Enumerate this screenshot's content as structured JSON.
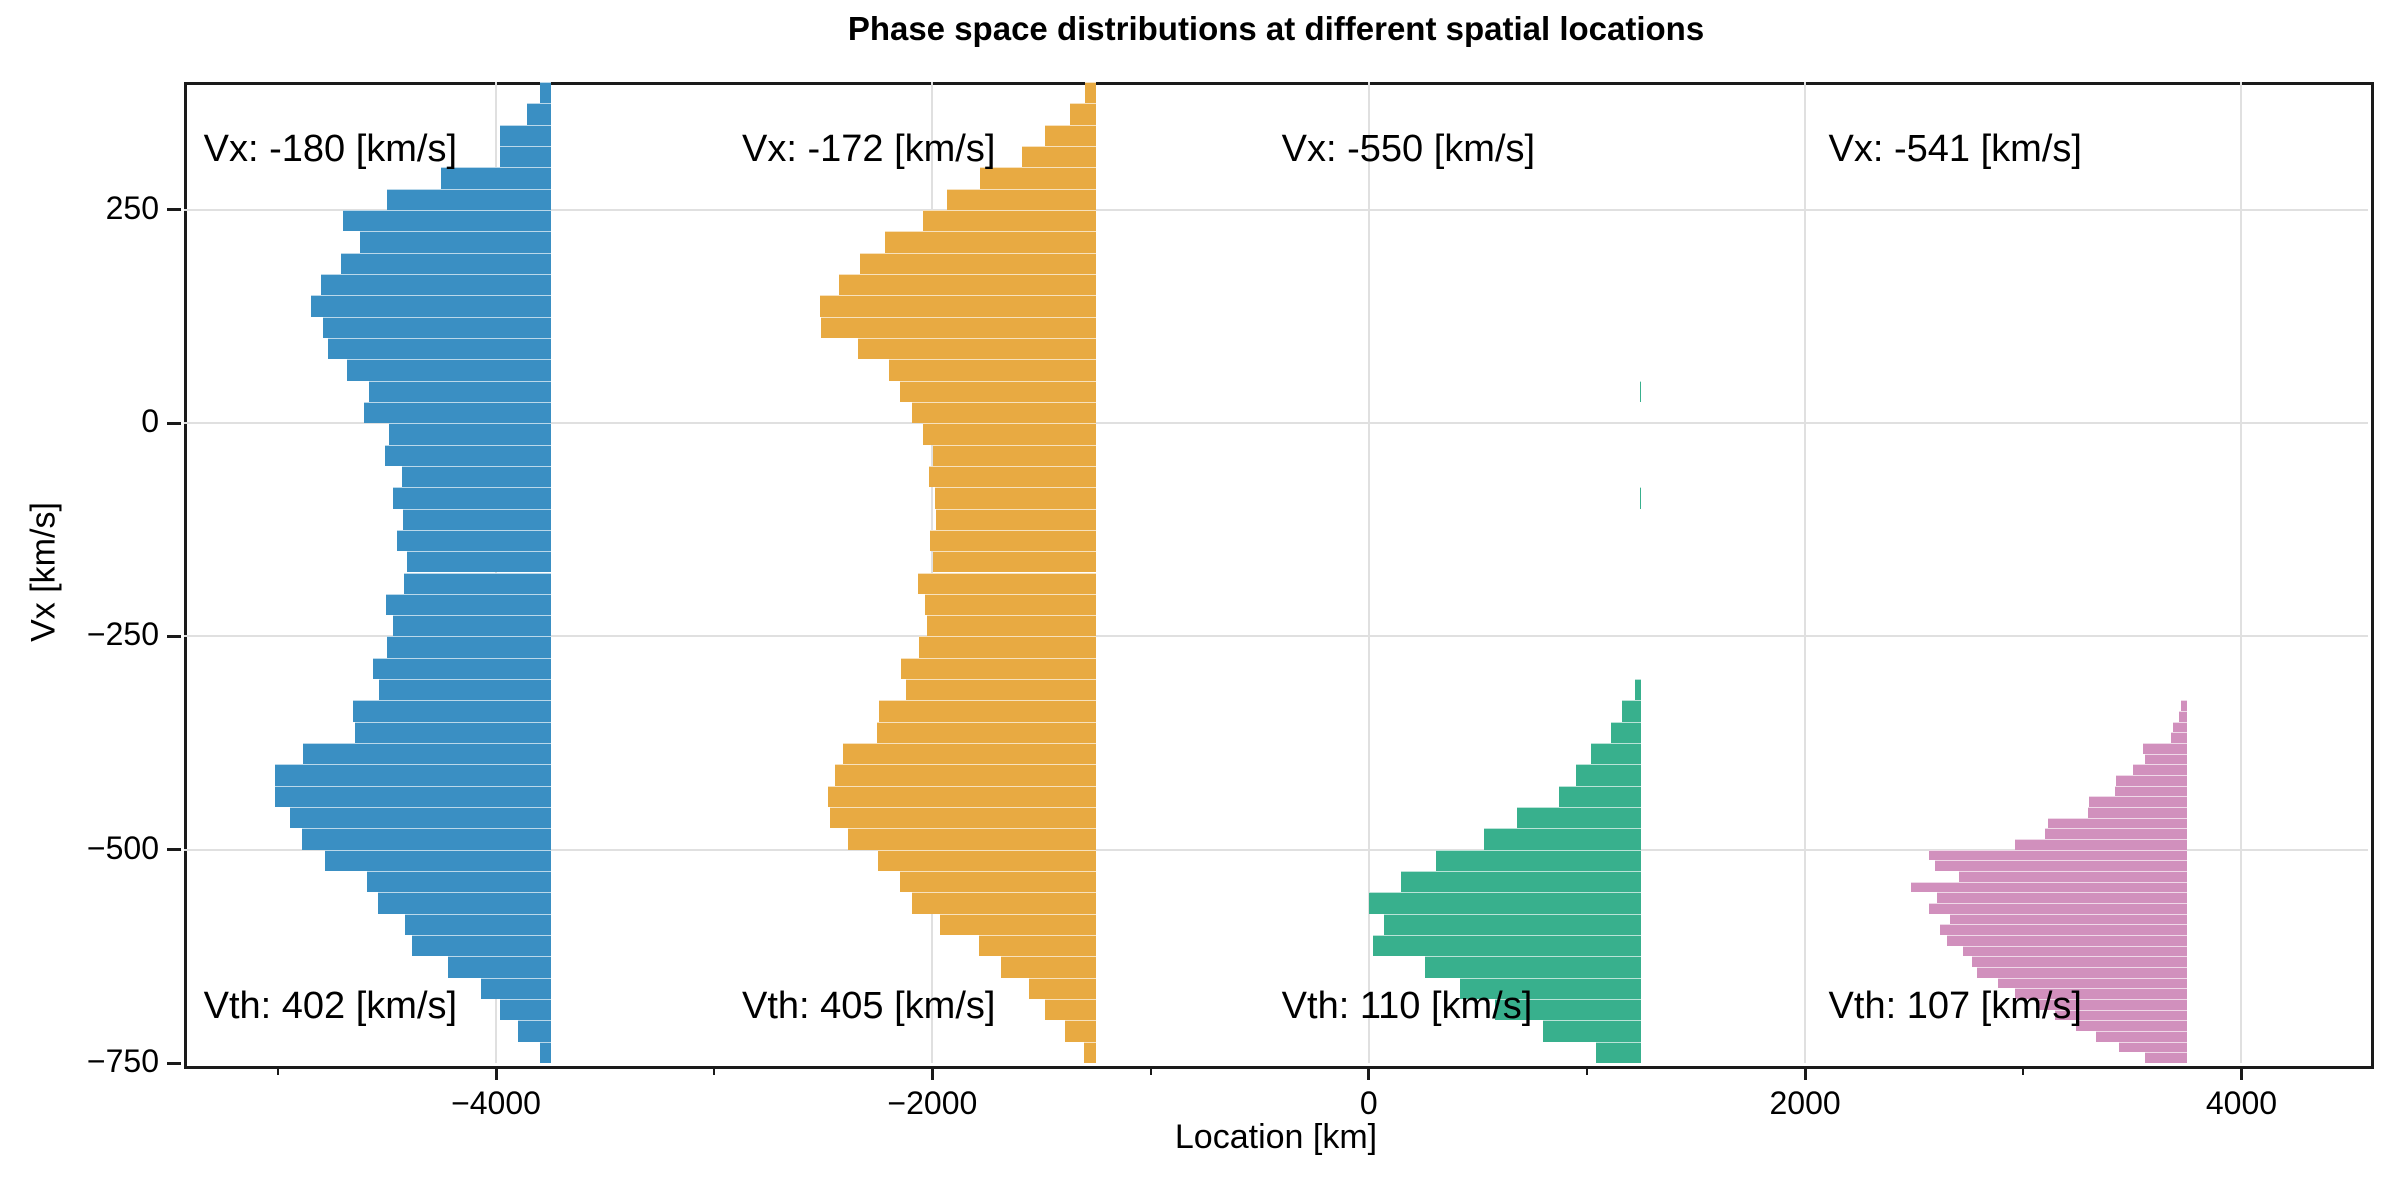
{
  "title": "Phase space distributions at different spatial locations",
  "axes": {
    "xlabel": "Location [km]",
    "ylabel": "Vx [km/s]",
    "xlim": [
      -5430,
      4580
    ],
    "ylim": [
      -750,
      400
    ],
    "x_major_ticks": [
      {
        "v": -4000,
        "label": "−4000"
      },
      {
        "v": -2000,
        "label": "−2000"
      },
      {
        "v": 0,
        "label": "0"
      },
      {
        "v": 2000,
        "label": "2000"
      },
      {
        "v": 4000,
        "label": "4000"
      }
    ],
    "x_minor_ticks": [
      -5000,
      -3000,
      -1000,
      1000,
      3000
    ],
    "y_major_ticks": [
      {
        "v": 250,
        "label": "250"
      },
      {
        "v": 0,
        "label": "0"
      },
      {
        "v": -250,
        "label": "−250"
      },
      {
        "v": -500,
        "label": "−500"
      },
      {
        "v": -750,
        "label": "−750"
      }
    ],
    "grid_color": "#e0e0e0",
    "spine_color": "#1a1a1a"
  },
  "chart_data": {
    "type": "bar",
    "subtype": "horizontal-histograms-at-locations",
    "grid": true,
    "series": [
      {
        "name": "distribution-1",
        "location_km": -3750,
        "color": "#3a8fc3",
        "vx_value": -180,
        "vth_value": 402,
        "vx_label": "Vx: -180 [km/s]",
        "vth_label": "Vth: 402 [km/s]",
        "ann_x_frac": 0.009,
        "bin_km_s": 25,
        "v_start": 400,
        "widths_km": [
          50,
          110,
          230,
          230,
          500,
          750,
          950,
          875,
          960,
          1050,
          1100,
          1045,
          1020,
          935,
          830,
          855,
          740,
          760,
          680,
          720,
          675,
          705,
          660,
          670,
          755,
          720,
          750,
          815,
          785,
          905,
          895,
          1135,
          1265,
          1265,
          1195,
          1140,
          1035,
          840,
          790,
          665,
          635,
          470,
          320,
          230,
          150,
          50
        ]
      },
      {
        "name": "distribution-2",
        "location_km": -1250,
        "color": "#e8aa42",
        "vx_value": -172,
        "vth_value": 405,
        "vx_label": "Vx: -172 [km/s]",
        "vth_label": "Vth: 405 [km/s]",
        "ann_x_frac": 0.2555,
        "bin_km_s": 25,
        "v_start": 400,
        "widths_km": [
          50,
          120,
          235,
          340,
          530,
          685,
          795,
          965,
          1080,
          1180,
          1265,
          1260,
          1090,
          950,
          900,
          845,
          795,
          745,
          765,
          740,
          735,
          760,
          745,
          815,
          785,
          775,
          810,
          895,
          870,
          995,
          1005,
          1160,
          1195,
          1230,
          1220,
          1135,
          1000,
          900,
          845,
          715,
          535,
          435,
          305,
          235,
          140,
          55
        ]
      },
      {
        "name": "distribution-3",
        "location_km": 1250,
        "color": "#38b08d",
        "vx_value": -550,
        "vth_value": 110,
        "vx_label": "Vx: -550 [km/s]",
        "vth_label": "Vth: 110 [km/s]",
        "ann_x_frac": 0.5026,
        "bin_km_s": 25,
        "v_start": 50,
        "widths_km": [
          8,
          0,
          0,
          0,
          0,
          6,
          0,
          0,
          0,
          0,
          0,
          0,
          0,
          0,
          30,
          90,
          140,
          230,
          300,
          380,
          570,
          720,
          940,
          1100,
          1250,
          1180,
          1230,
          990,
          830,
          670,
          450,
          210
        ]
      },
      {
        "name": "distribution-4",
        "location_km": 3750,
        "color": "#d190bd",
        "vx_value": -541,
        "vth_value": 107,
        "vx_label": "Vx: -541 [km/s]",
        "vth_label": "Vth: 107 [km/s]",
        "ann_x_frac": 0.753,
        "bin_km_s": 12.5,
        "v_start": -325,
        "widths_km": [
          25,
          35,
          65,
          75,
          200,
          190,
          245,
          325,
          330,
          450,
          455,
          635,
          650,
          790,
          1180,
          1155,
          1045,
          1265,
          1145,
          1180,
          1085,
          1130,
          1100,
          1025,
          985,
          960,
          865,
          790,
          680,
          605,
          510,
          415,
          310,
          190
        ]
      }
    ],
    "annotation_rows": {
      "vx_y_frac": 0.047,
      "vth_y_frac": 0.92
    }
  }
}
